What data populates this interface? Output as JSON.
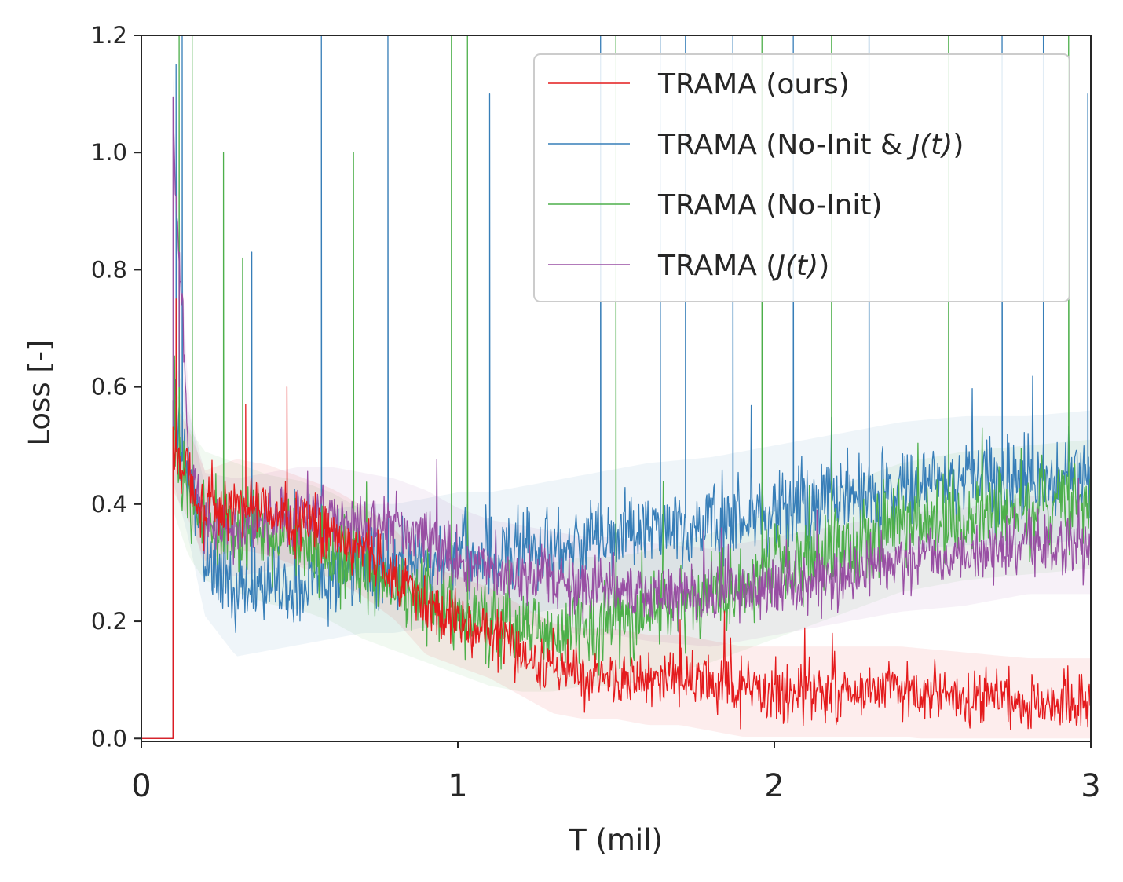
{
  "chart_data": {
    "type": "line",
    "title": "",
    "xlabel": "T (mil)",
    "ylabel": "Loss [-]",
    "xlim": [
      0,
      3.0
    ],
    "ylim": [
      -0.005,
      1.2
    ],
    "xticks": [
      0,
      1,
      2,
      3
    ],
    "xtick_labels": [
      "0",
      "1",
      "2",
      "3"
    ],
    "yticks": [
      0.0,
      0.2,
      0.4,
      0.6,
      0.8,
      1.0,
      1.2
    ],
    "ytick_labels": [
      "0.0",
      "0.2",
      "0.4",
      "0.6",
      "0.8",
      "1.0",
      "1.2"
    ],
    "grid": false,
    "legend_position": "top-right",
    "legend": [
      {
        "label_pre": "TRAMA (ours)",
        "label_it": "",
        "label_post": ""
      },
      {
        "label_pre": "TRAMA (No-Init & ",
        "label_it": "J(t)",
        "label_post": ")"
      },
      {
        "label_pre": "TRAMA (No-Init)",
        "label_it": "",
        "label_post": ""
      },
      {
        "label_pre": "TRAMA (",
        "label_it": "J(t)",
        "label_post": ")"
      }
    ],
    "series": [
      {
        "name": "TRAMA (ours)",
        "color": "#e41a1c",
        "x": [
          0,
          0.1,
          0.1,
          0.15,
          0.2,
          0.3,
          0.4,
          0.5,
          0.6,
          0.7,
          0.8,
          0.9,
          1.0,
          1.1,
          1.2,
          1.3,
          1.4,
          1.5,
          1.6,
          1.7,
          1.8,
          1.9,
          2.0,
          2.2,
          2.4,
          2.6,
          2.8,
          3.0
        ],
        "values": [
          0,
          0,
          0.5,
          0.45,
          0.38,
          0.4,
          0.39,
          0.37,
          0.35,
          0.32,
          0.28,
          0.22,
          0.2,
          0.18,
          0.15,
          0.12,
          0.11,
          0.11,
          0.1,
          0.1,
          0.09,
          0.08,
          0.08,
          0.08,
          0.08,
          0.07,
          0.06,
          0.06
        ],
        "noise": 0.035,
        "spikes": [
          [
            0.11,
            0.75
          ],
          [
            0.46,
            0.6
          ],
          [
            0.33,
            0.57
          ]
        ]
      },
      {
        "name": "TRAMA (No-Init & J(t))",
        "color": "#377eb8",
        "x": [
          0,
          0.1,
          0.1,
          0.15,
          0.2,
          0.3,
          0.4,
          0.5,
          0.6,
          0.7,
          0.8,
          0.9,
          1.0,
          1.1,
          1.2,
          1.3,
          1.4,
          1.5,
          1.6,
          1.8,
          2.0,
          2.2,
          2.4,
          2.6,
          2.8,
          3.0
        ],
        "values": [
          0,
          0,
          0.55,
          0.45,
          0.32,
          0.25,
          0.26,
          0.27,
          0.28,
          0.29,
          0.29,
          0.3,
          0.31,
          0.31,
          0.32,
          0.33,
          0.34,
          0.35,
          0.36,
          0.37,
          0.39,
          0.41,
          0.43,
          0.44,
          0.44,
          0.45
        ],
        "noise": 0.05,
        "spikes": [
          [
            0.11,
            1.15
          ],
          [
            0.13,
            1.2
          ],
          [
            0.35,
            0.83
          ],
          [
            0.57,
            1.2
          ],
          [
            0.78,
            1.2
          ],
          [
            1.1,
            1.1
          ],
          [
            1.45,
            1.2
          ],
          [
            1.64,
            1.2
          ],
          [
            1.72,
            1.2
          ],
          [
            1.87,
            1.2
          ],
          [
            2.06,
            1.2
          ],
          [
            2.3,
            1.2
          ],
          [
            2.72,
            1.2
          ],
          [
            2.85,
            1.2
          ],
          [
            2.99,
            1.1
          ]
        ]
      },
      {
        "name": "TRAMA (No-Init)",
        "color": "#4daf4a",
        "x": [
          0,
          0.1,
          0.1,
          0.15,
          0.2,
          0.3,
          0.4,
          0.5,
          0.6,
          0.7,
          0.8,
          0.9,
          1.0,
          1.1,
          1.2,
          1.3,
          1.4,
          1.5,
          1.6,
          1.8,
          2.0,
          2.2,
          2.4,
          2.6,
          2.8,
          3.0
        ],
        "values": [
          0,
          0,
          0.5,
          0.42,
          0.38,
          0.36,
          0.34,
          0.33,
          0.31,
          0.28,
          0.26,
          0.24,
          0.22,
          0.2,
          0.19,
          0.19,
          0.2,
          0.2,
          0.21,
          0.24,
          0.28,
          0.32,
          0.36,
          0.38,
          0.39,
          0.4
        ],
        "noise": 0.05,
        "spikes": [
          [
            0.12,
            1.2
          ],
          [
            0.16,
            1.2
          ],
          [
            0.26,
            1.0
          ],
          [
            0.32,
            0.82
          ],
          [
            0.67,
            1.0
          ],
          [
            0.98,
            1.2
          ],
          [
            1.03,
            1.2
          ],
          [
            1.5,
            1.2
          ],
          [
            1.96,
            1.2
          ],
          [
            2.18,
            1.2
          ],
          [
            2.55,
            1.2
          ],
          [
            2.93,
            1.2
          ]
        ]
      },
      {
        "name": "TRAMA (J(t))",
        "color": "#984ea3",
        "x": [
          0,
          0.1,
          0.1,
          0.15,
          0.2,
          0.3,
          0.4,
          0.5,
          0.6,
          0.7,
          0.8,
          0.9,
          1.0,
          1.1,
          1.2,
          1.3,
          1.4,
          1.5,
          1.6,
          1.8,
          2.0,
          2.2,
          2.4,
          2.6,
          2.8,
          3.0
        ],
        "values": [
          0,
          0,
          1.05,
          0.48,
          0.37,
          0.36,
          0.37,
          0.38,
          0.38,
          0.37,
          0.36,
          0.34,
          0.31,
          0.29,
          0.28,
          0.27,
          0.26,
          0.26,
          0.25,
          0.24,
          0.26,
          0.28,
          0.3,
          0.31,
          0.33,
          0.33
        ],
        "noise": 0.038,
        "spikes": [
          [
            0.12,
            0.6
          ]
        ]
      }
    ]
  }
}
